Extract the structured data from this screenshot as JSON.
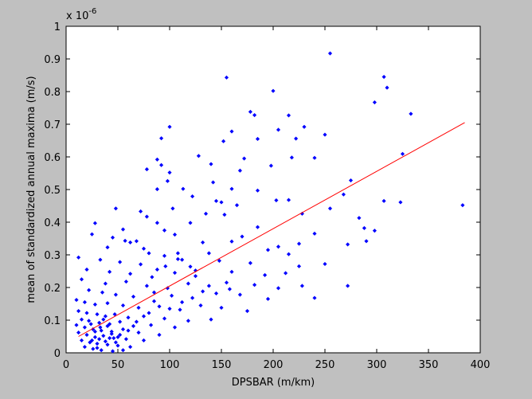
{
  "figure": {
    "background": "#c0c0c0"
  },
  "chart_data": {
    "type": "scatter",
    "title": "",
    "xlabel": "DPSBAR (m/km)",
    "ylabel": "mean of standardized annual maxima (m/s)",
    "exponent_label": {
      "base": "x 10",
      "exp": "-6"
    },
    "xlim": [
      0,
      400
    ],
    "ylim": [
      0,
      1
    ],
    "xticks": [
      0,
      50,
      100,
      150,
      200,
      250,
      300,
      350,
      400
    ],
    "yticks": [
      0,
      0.1,
      0.2,
      0.3,
      0.4,
      0.5,
      0.6,
      0.7,
      0.8,
      0.9,
      1
    ],
    "ytick_labels": [
      "0",
      "0.1",
      "0.2",
      "0.3",
      "0.4",
      "0.5",
      "0.6",
      "0.7",
      "0.8",
      "0.9",
      "1"
    ],
    "grid": false,
    "marker_color": "#0000ff",
    "line_color": "#ff0000",
    "fit_line": {
      "x": [
        12,
        385
      ],
      "y": [
        0.05,
        0.705
      ]
    },
    "series": [
      {
        "points": [
          [
            255,
            0.917
          ],
          [
            155,
            0.843
          ],
          [
            307,
            0.845
          ],
          [
            310,
            0.812
          ],
          [
            200,
            0.802
          ],
          [
            298,
            0.767
          ],
          [
            178,
            0.738
          ],
          [
            182,
            0.728
          ],
          [
            333,
            0.732
          ],
          [
            215,
            0.727
          ],
          [
            100,
            0.692
          ],
          [
            230,
            0.692
          ],
          [
            160,
            0.678
          ],
          [
            92,
            0.657
          ],
          [
            205,
            0.683
          ],
          [
            250,
            0.668
          ],
          [
            185,
            0.655
          ],
          [
            152,
            0.648
          ],
          [
            222,
            0.656
          ],
          [
            325,
            0.609
          ],
          [
            88,
            0.592
          ],
          [
            128,
            0.603
          ],
          [
            172,
            0.595
          ],
          [
            198,
            0.573
          ],
          [
            92,
            0.575
          ],
          [
            140,
            0.578
          ],
          [
            218,
            0.598
          ],
          [
            240,
            0.597
          ],
          [
            78,
            0.562
          ],
          [
            100,
            0.552
          ],
          [
            168,
            0.558
          ],
          [
            98,
            0.526
          ],
          [
            142,
            0.522
          ],
          [
            275,
            0.528
          ],
          [
            88,
            0.501
          ],
          [
            113,
            0.502
          ],
          [
            160,
            0.502
          ],
          [
            185,
            0.497
          ],
          [
            268,
            0.485
          ],
          [
            122,
            0.479
          ],
          [
            145,
            0.465
          ],
          [
            150,
            0.461
          ],
          [
            215,
            0.468
          ],
          [
            203,
            0.467
          ],
          [
            165,
            0.452
          ],
          [
            307,
            0.465
          ],
          [
            323,
            0.461
          ],
          [
            48,
            0.442
          ],
          [
            103,
            0.442
          ],
          [
            255,
            0.442
          ],
          [
            383,
            0.452
          ],
          [
            28,
            0.397
          ],
          [
            72,
            0.433
          ],
          [
            78,
            0.417
          ],
          [
            135,
            0.426
          ],
          [
            153,
            0.423
          ],
          [
            228,
            0.426
          ],
          [
            283,
            0.413
          ],
          [
            25,
            0.363
          ],
          [
            55,
            0.378
          ],
          [
            88,
            0.398
          ],
          [
            95,
            0.375
          ],
          [
            120,
            0.398
          ],
          [
            185,
            0.385
          ],
          [
            288,
            0.382
          ],
          [
            298,
            0.374
          ],
          [
            45,
            0.353
          ],
          [
            68,
            0.342
          ],
          [
            105,
            0.362
          ],
          [
            170,
            0.356
          ],
          [
            240,
            0.365
          ],
          [
            290,
            0.342
          ],
          [
            272,
            0.332
          ],
          [
            57,
            0.343
          ],
          [
            62,
            0.338
          ],
          [
            132,
            0.338
          ],
          [
            160,
            0.341
          ],
          [
            205,
            0.325
          ],
          [
            225,
            0.334
          ],
          [
            40,
            0.323
          ],
          [
            75,
            0.319
          ],
          [
            80,
            0.305
          ],
          [
            95,
            0.297
          ],
          [
            108,
            0.287
          ],
          [
            138,
            0.305
          ],
          [
            195,
            0.315
          ],
          [
            215,
            0.302
          ],
          [
            250,
            0.272
          ],
          [
            12,
            0.292
          ],
          [
            33,
            0.285
          ],
          [
            52,
            0.278
          ],
          [
            72,
            0.271
          ],
          [
            120,
            0.264
          ],
          [
            148,
            0.282
          ],
          [
            178,
            0.275
          ],
          [
            225,
            0.265
          ],
          [
            20,
            0.255
          ],
          [
            42,
            0.248
          ],
          [
            62,
            0.242
          ],
          [
            83,
            0.232
          ],
          [
            105,
            0.245
          ],
          [
            125,
            0.252
          ],
          [
            160,
            0.248
          ],
          [
            192,
            0.238
          ],
          [
            212,
            0.244
          ],
          [
            15,
            0.225
          ],
          [
            38,
            0.212
          ],
          [
            58,
            0.218
          ],
          [
            78,
            0.205
          ],
          [
            98,
            0.198
          ],
          [
            118,
            0.212
          ],
          [
            138,
            0.205
          ],
          [
            155,
            0.215
          ],
          [
            182,
            0.208
          ],
          [
            205,
            0.198
          ],
          [
            228,
            0.205
          ],
          [
            272,
            0.205
          ],
          [
            22,
            0.192
          ],
          [
            35,
            0.185
          ],
          [
            48,
            0.178
          ],
          [
            65,
            0.172
          ],
          [
            85,
            0.185
          ],
          [
            102,
            0.175
          ],
          [
            122,
            0.168
          ],
          [
            145,
            0.182
          ],
          [
            168,
            0.178
          ],
          [
            195,
            0.165
          ],
          [
            240,
            0.168
          ],
          [
            10,
            0.162
          ],
          [
            18,
            0.155
          ],
          [
            28,
            0.148
          ],
          [
            40,
            0.152
          ],
          [
            55,
            0.145
          ],
          [
            70,
            0.138
          ],
          [
            90,
            0.142
          ],
          [
            110,
            0.132
          ],
          [
            130,
            0.145
          ],
          [
            150,
            0.138
          ],
          [
            175,
            0.128
          ],
          [
            12,
            0.128
          ],
          [
            20,
            0.122
          ],
          [
            30,
            0.118
          ],
          [
            38,
            0.112
          ],
          [
            47,
            0.118
          ],
          [
            60,
            0.108
          ],
          [
            75,
            0.112
          ],
          [
            95,
            0.105
          ],
          [
            118,
            0.098
          ],
          [
            140,
            0.102
          ],
          [
            15,
            0.102
          ],
          [
            22,
            0.098
          ],
          [
            32,
            0.092
          ],
          [
            42,
            0.088
          ],
          [
            52,
            0.095
          ],
          [
            65,
            0.082
          ],
          [
            82,
            0.085
          ],
          [
            105,
            0.078
          ],
          [
            10,
            0.085
          ],
          [
            18,
            0.078
          ],
          [
            26,
            0.072
          ],
          [
            34,
            0.068
          ],
          [
            44,
            0.065
          ],
          [
            55,
            0.072
          ],
          [
            70,
            0.062
          ],
          [
            90,
            0.055
          ],
          [
            12,
            0.062
          ],
          [
            20,
            0.055
          ],
          [
            28,
            0.048
          ],
          [
            36,
            0.052
          ],
          [
            46,
            0.045
          ],
          [
            58,
            0.042
          ],
          [
            75,
            0.038
          ],
          [
            15,
            0.038
          ],
          [
            23,
            0.032
          ],
          [
            30,
            0.028
          ],
          [
            40,
            0.025
          ],
          [
            50,
            0.022
          ],
          [
            62,
            0.018
          ],
          [
            18,
            0.018
          ],
          [
            26,
            0.012
          ],
          [
            34,
            0.008
          ],
          [
            45,
            0.005
          ],
          [
            55,
            0.008
          ],
          [
            25,
            0.038
          ],
          [
            32,
            0.042
          ],
          [
            38,
            0.035
          ],
          [
            44,
            0.058
          ],
          [
            50,
            0.048
          ],
          [
            28,
            0.065
          ],
          [
            33,
            0.078
          ],
          [
            40,
            0.082
          ],
          [
            24,
            0.088
          ],
          [
            36,
            0.102
          ],
          [
            42,
            0.045
          ],
          [
            48,
            0.032
          ],
          [
            30,
            0.015
          ],
          [
            52,
            0.055
          ],
          [
            60,
            0.068
          ],
          [
            68,
            0.095
          ],
          [
            80,
            0.122
          ],
          [
            100,
            0.135
          ],
          [
            85,
            0.158
          ],
          [
            112,
            0.155
          ],
          [
            132,
            0.188
          ],
          [
            158,
            0.195
          ],
          [
            88,
            0.255
          ],
          [
            96,
            0.265
          ],
          [
            108,
            0.305
          ],
          [
            112,
            0.285
          ],
          [
            125,
            0.235
          ]
        ]
      }
    ]
  }
}
